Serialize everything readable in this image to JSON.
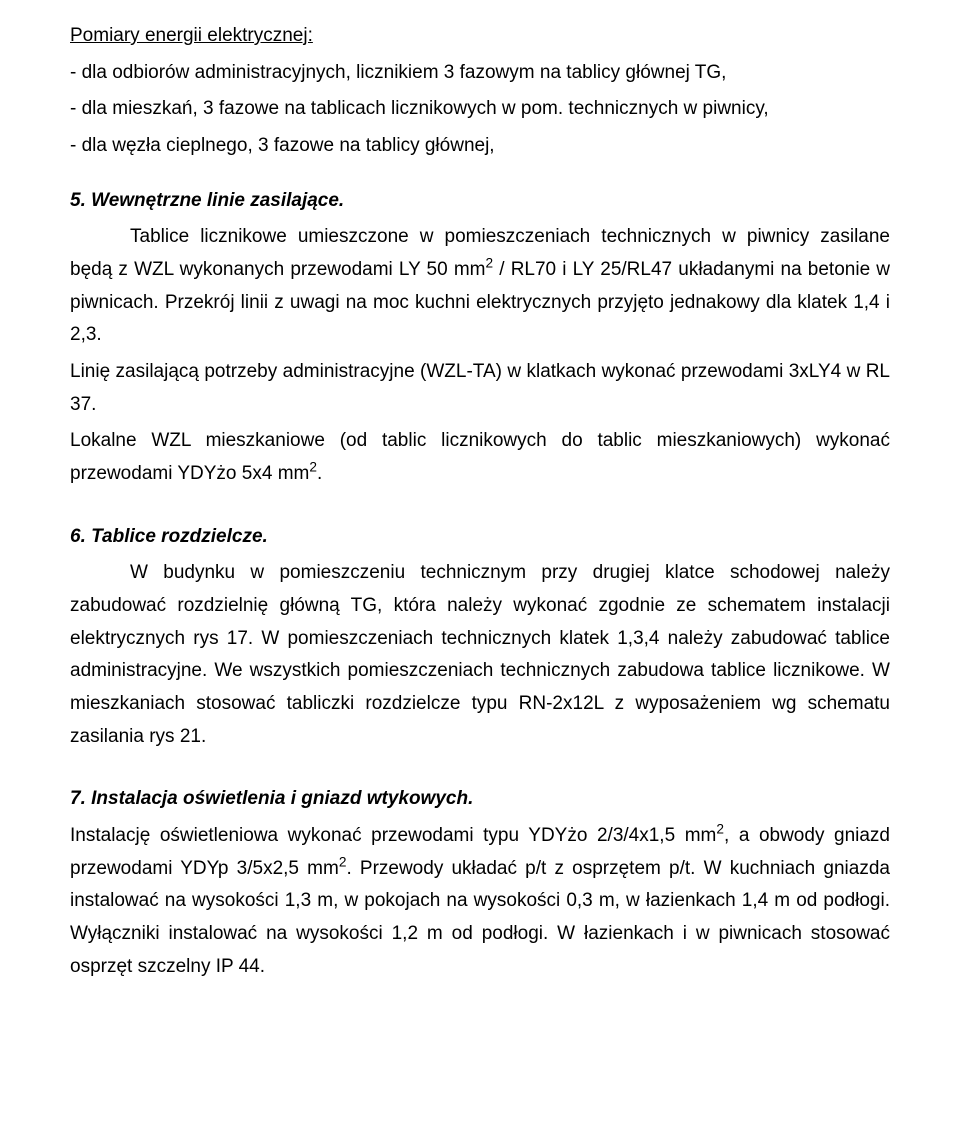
{
  "fontSize": 19,
  "title1": "Pomiary energii elektrycznej:",
  "bullets1": [
    "-  dla odbiorów administracyjnych, licznikiem 3 fazowym  na tablicy głównej TG,",
    "-  dla mieszkań, 3 fazowe na tablicach licznikowych w pom. technicznych w piwnicy,",
    "-  dla węzła cieplnego, 3 fazowe na tablicy głównej,"
  ],
  "section5": {
    "heading": "5. Wewnętrzne linie zasilające.",
    "para1_pre": "Tablice licznikowe umieszczone w pomieszczeniach technicznych w piwnicy zasilane będą z WZL wykonanych przewodami LY 50 mm",
    "sup1": "2",
    "para1_post": " / RL70 i LY 25/RL47 układanymi na betonie w piwnicach. Przekrój linii z uwagi na moc kuchni  elektrycznych przyjęto jednakowy dla klatek 1,4 i 2,3.",
    "para2": "Linię zasilającą potrzeby administracyjne (WZL-TA) w klatkach wykonać przewodami 3xLY4 w RL 37.",
    "para3_pre": "Lokalne WZL mieszkaniowe (od tablic licznikowych do tablic mieszkaniowych) wykonać przewodami YDYżo 5x4 mm",
    "sup3": "2",
    "para3_post": "."
  },
  "section6": {
    "heading": "6. Tablice rozdzielcze.",
    "para": "W budynku w  pomieszczeniu technicznym przy drugiej klatce schodowej należy zabudować  rozdzielnię główną TG, która należy wykonać zgodnie ze schematem instalacji elektrycznych rys 17. W pomieszczeniach technicznych klatek 1,3,4 należy zabudować tablice administracyjne. We wszystkich pomieszczeniach technicznych zabudowa tablice licznikowe. W mieszkaniach stosować tabliczki rozdzielcze typu RN-2x12L z wyposażeniem wg schematu zasilania  rys 21."
  },
  "section7": {
    "heading": "7. Instalacja oświetlenia i gniazd wtykowych.",
    "para_pre": "Instalację oświetleniowa wykonać przewodami typu YDYżo 2/3/4x1,5 mm",
    "sup_a": "2",
    "para_mid": ", a obwody gniazd przewodami YDYp 3/5x2,5 mm",
    "sup_b": "2",
    "para_post": ". Przewody układać p/t z osprzętem p/t. W kuchniach gniazda instalować na wysokości 1,3 m, w pokojach na wysokości 0,3 m, w łazienkach 1,4 m od podłogi. Wyłączniki instalować na wysokości 1,2 m od podłogi. W łazienkach i w piwnicach stosować osprzęt szczelny IP 44."
  }
}
